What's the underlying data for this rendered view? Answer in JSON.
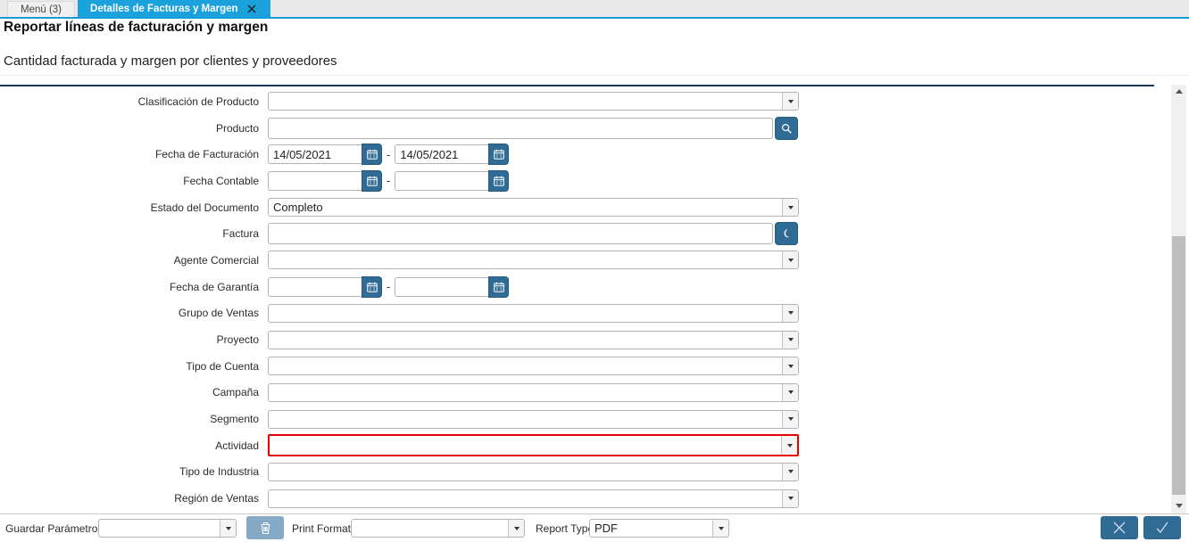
{
  "tab_bar": {
    "tabs": [
      {
        "label": "Menú (3)",
        "active": false
      },
      {
        "label": "Detalles de Facturas y Margen",
        "active": true,
        "close_icon": "close-icon"
      }
    ]
  },
  "header": {
    "title": "Reportar líneas de facturación y margen",
    "subtitle": "Cantidad facturada y margen por clientes y proveedores"
  },
  "form": {
    "date_separator": "-",
    "fields": [
      {
        "label": "Clasificación de Producto",
        "type": "combo",
        "value": ""
      },
      {
        "label": "Producto",
        "type": "lookup",
        "value": "",
        "icon": "search-icon"
      },
      {
        "label": "Fecha de Facturación",
        "type": "daterange",
        "from": "14/05/2021",
        "to": "14/05/2021"
      },
      {
        "label": "Fecha Contable",
        "type": "daterange",
        "from": "",
        "to": ""
      },
      {
        "label": "Estado del Documento",
        "type": "combo",
        "value": "Completo"
      },
      {
        "label": "Factura",
        "type": "lookup",
        "value": "",
        "icon": "invoice-lookup-icon"
      },
      {
        "label": "Agente Comercial",
        "type": "combo",
        "value": ""
      },
      {
        "label": "Fecha de Garantía",
        "type": "daterange",
        "from": "",
        "to": ""
      },
      {
        "label": "Grupo de Ventas",
        "type": "combo",
        "value": ""
      },
      {
        "label": "Proyecto",
        "type": "combo",
        "value": ""
      },
      {
        "label": "Tipo de Cuenta",
        "type": "combo",
        "value": ""
      },
      {
        "label": "Campaña",
        "type": "combo",
        "value": ""
      },
      {
        "label": "Segmento",
        "type": "combo",
        "value": ""
      },
      {
        "label": "Actividad",
        "type": "combo",
        "value": "",
        "error": true
      },
      {
        "label": "Tipo de Industria",
        "type": "combo",
        "value": ""
      },
      {
        "label": "Región de Ventas",
        "type": "combo",
        "value": ""
      }
    ]
  },
  "footer": {
    "save_param_label": "Guardar Parámetro",
    "save_param_value": "",
    "delete_icon": "trash-icon",
    "print_format_label": "Print Format",
    "print_format_value": "",
    "report_type_label": "Report Type",
    "report_type_value": "PDF",
    "cancel_icon": "close-icon",
    "confirm_icon": "check-icon"
  },
  "colors": {
    "tab_active_blue": "#1ba1dc",
    "tab_strip_border": "#189cd8",
    "panel_border_navy": "#16395e",
    "button_steel_blue": "#2f6b94",
    "trash_button_blue": "#84aac8",
    "error_border_red": "#e40000"
  }
}
